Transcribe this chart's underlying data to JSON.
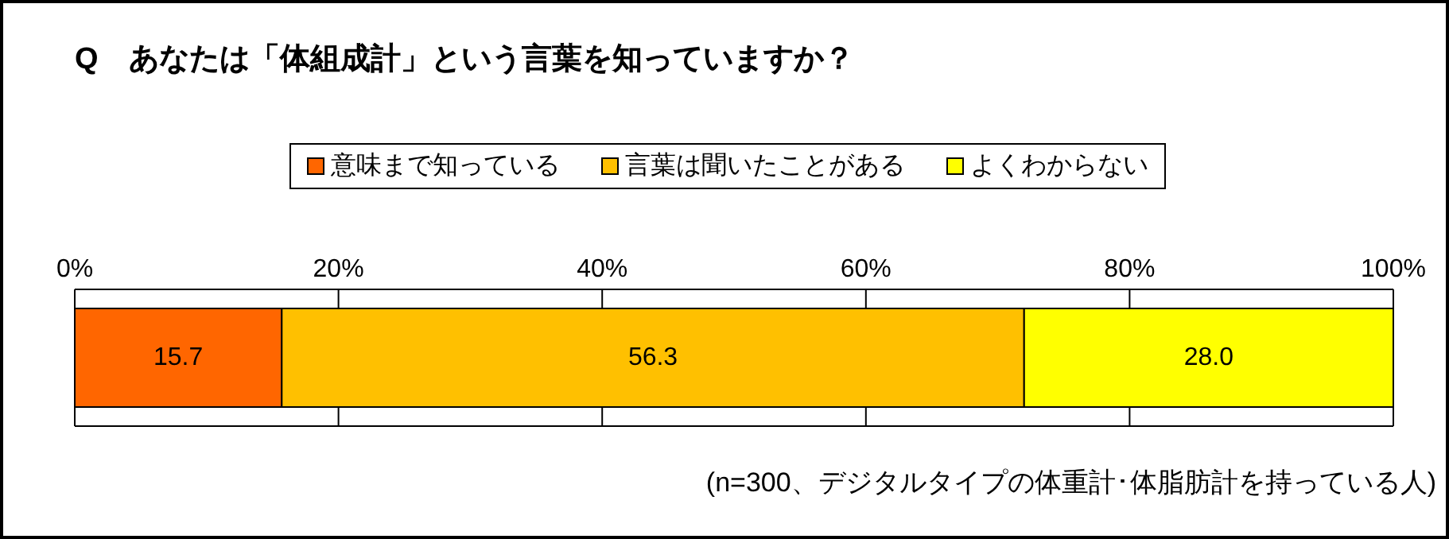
{
  "chart_data": {
    "type": "bar",
    "orientation": "horizontal",
    "stacked": true,
    "title": "Q　あなたは「体組成計」という言葉を知っていますか？",
    "categories": [
      null
    ],
    "series": [
      {
        "name": "意味まで知っている",
        "color": "#ff6600",
        "values": [
          15.7
        ],
        "value_labels": [
          "15.7"
        ]
      },
      {
        "name": "言葉は聞いたことがある",
        "color": "#ffc000",
        "values": [
          56.3
        ],
        "value_labels": [
          "56.3"
        ]
      },
      {
        "name": "よくわからない",
        "color": "#ffff00",
        "values": [
          28.0
        ],
        "value_labels": [
          "28.0"
        ]
      }
    ],
    "xlim": [
      0,
      100
    ],
    "xticks": [
      {
        "value": 0,
        "label": "0%"
      },
      {
        "value": 20,
        "label": "20%"
      },
      {
        "value": 40,
        "label": "40%"
      },
      {
        "value": 60,
        "label": "60%"
      },
      {
        "value": 80,
        "label": "80%"
      },
      {
        "value": 100,
        "label": "100%"
      }
    ],
    "grid": "x",
    "legend": "top",
    "annotations": [
      "(n=300、デジタルタイプの体重計･体脂肪計を持っている人)"
    ]
  }
}
